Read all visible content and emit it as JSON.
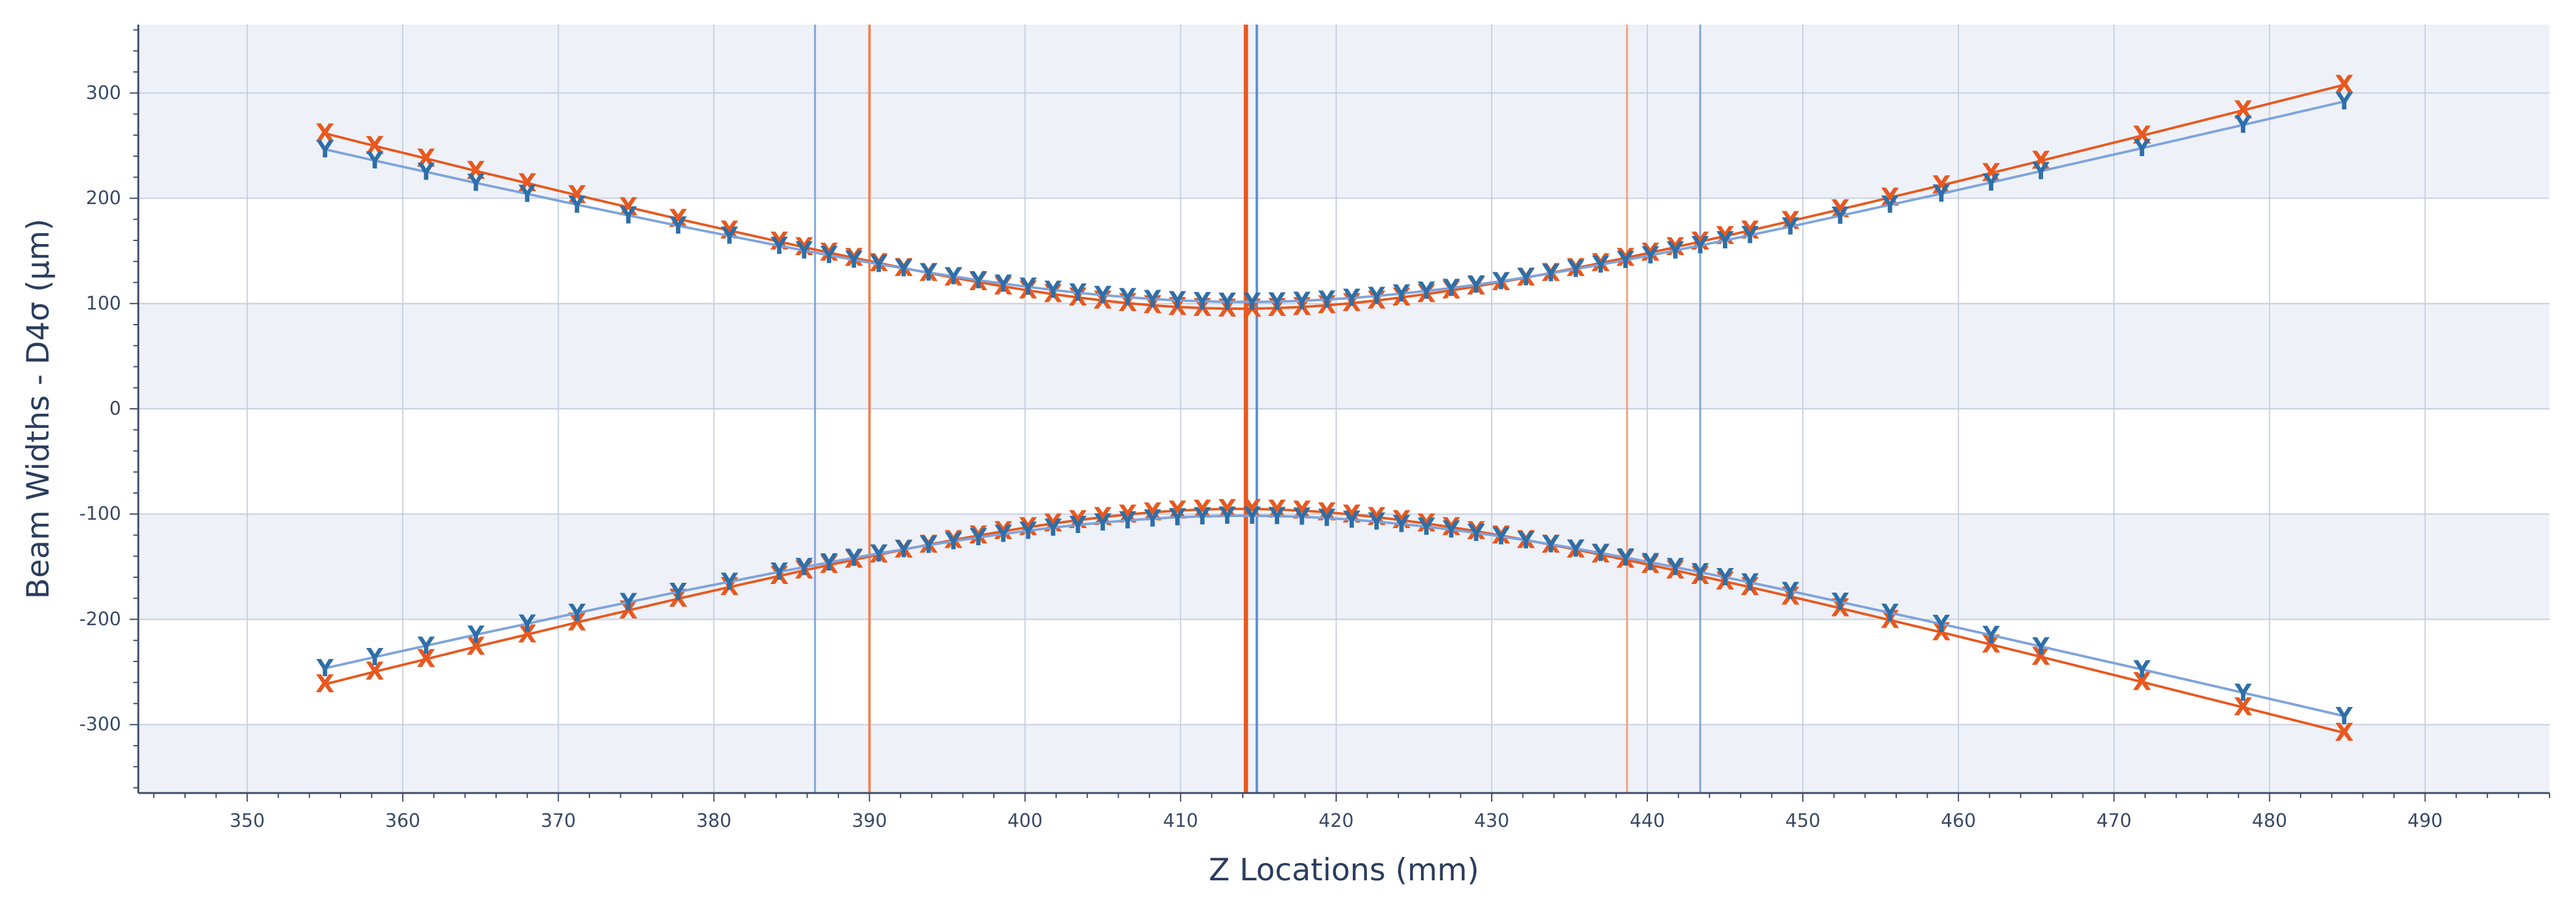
{
  "chart_data": {
    "type": "scatter",
    "title": "",
    "xlabel": "Z Locations (mm)",
    "ylabel": "Beam Widths - D4σ (µm)",
    "xlim": [
      343,
      498
    ],
    "ylim": [
      -365,
      365
    ],
    "xticks": [
      350,
      360,
      370,
      380,
      390,
      400,
      410,
      420,
      430,
      440,
      450,
      460,
      470,
      480,
      490
    ],
    "yticks": [
      -300,
      -200,
      -100,
      0,
      100,
      200,
      300
    ],
    "grid": true,
    "legend": "none",
    "x": [
      355.0,
      358.2,
      361.5,
      364.7,
      368.0,
      371.2,
      374.5,
      377.7,
      381.0,
      384.2,
      385.8,
      387.4,
      389.0,
      390.6,
      392.2,
      393.8,
      395.4,
      397.0,
      398.6,
      400.2,
      401.8,
      403.4,
      405.0,
      406.6,
      408.2,
      409.8,
      411.4,
      413.0,
      414.6,
      416.2,
      417.8,
      419.4,
      421.0,
      422.6,
      424.2,
      425.8,
      427.4,
      429.0,
      430.6,
      432.2,
      433.8,
      435.4,
      437.0,
      438.6,
      440.2,
      441.8,
      443.4,
      445.0,
      446.6,
      449.2,
      452.4,
      455.6,
      458.9,
      462.1,
      465.3,
      471.8,
      478.3,
      484.8
    ],
    "series": [
      {
        "name": "X",
        "marker": "X",
        "color": "#e8581f",
        "values": [
          261.7,
          249.7,
          237.8,
          226.0,
          214.4,
          202.9,
          191.5,
          180.4,
          169.4,
          158.8,
          153.5,
          148.4,
          143.4,
          138.5,
          133.7,
          129.1,
          124.6,
          120.4,
          116.3,
          112.5,
          109.0,
          105.8,
          102.9,
          100.4,
          98.3,
          96.7,
          95.7,
          95.1,
          95.1,
          95.7,
          96.7,
          98.3,
          100.4,
          102.9,
          105.8,
          109.0,
          112.5,
          116.3,
          120.4,
          124.6,
          129.1,
          133.7,
          138.5,
          143.4,
          148.4,
          153.5,
          158.8,
          164.1,
          169.4,
          178.3,
          189.4,
          200.7,
          212.3,
          223.9,
          235.6,
          259.5,
          283.6,
          307.8
        ],
        "mirror": true
      },
      {
        "name": "Y",
        "marker": "Y",
        "color": "#2e6fa8",
        "line_color": "#7ea3dc",
        "values": [
          246.5,
          235.8,
          225.1,
          214.6,
          204.2,
          193.9,
          183.8,
          173.9,
          164.3,
          154.9,
          150.4,
          145.9,
          141.6,
          137.4,
          133.4,
          129.5,
          125.8,
          122.2,
          118.9,
          115.8,
          112.9,
          110.3,
          108.0,
          106.0,
          104.3,
          103.0,
          102.2,
          101.7,
          101.6,
          101.9,
          102.6,
          103.8,
          105.3,
          107.2,
          109.4,
          112.0,
          114.8,
          117.9,
          121.3,
          124.9,
          128.7,
          132.8,
          137.0,
          141.3,
          145.8,
          150.4,
          155.2,
          160.0,
          164.9,
          173.1,
          183.4,
          193.8,
          204.4,
          215.0,
          225.8,
          247.6,
          269.7,
          291.9
        ],
        "mirror": true
      }
    ],
    "reference_lines": [
      {
        "x": 386.5,
        "color": "#7ea3dc",
        "width": 3
      },
      {
        "x": 390.0,
        "color": "#f08050",
        "width": 4
      },
      {
        "x": 414.2,
        "color": "#e8581f",
        "width": 7
      },
      {
        "x": 414.9,
        "color": "#5b8fd6",
        "width": 4
      },
      {
        "x": 438.7,
        "color": "#f4a070",
        "width": 3
      },
      {
        "x": 443.4,
        "color": "#7ea3dc",
        "width": 3
      }
    ],
    "band_color": "#eef1f7",
    "grid_color": "#c6cfe0"
  }
}
